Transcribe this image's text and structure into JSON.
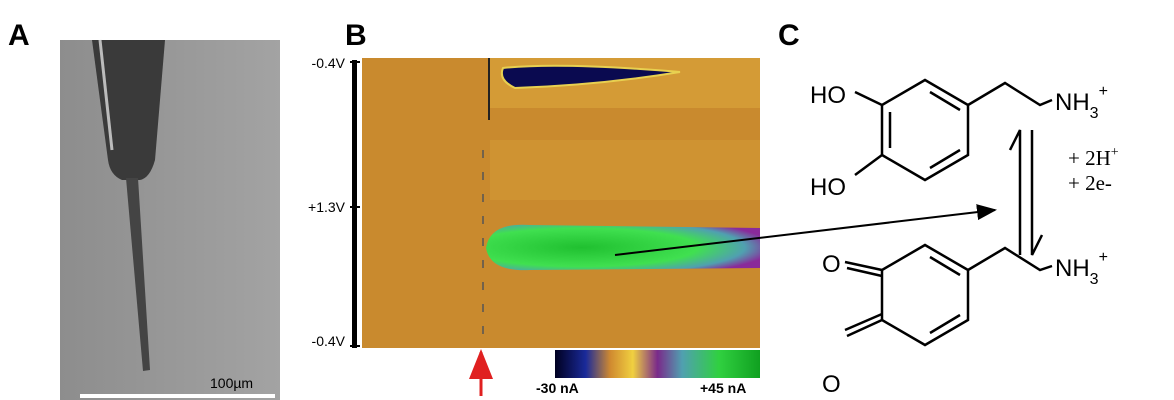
{
  "panels": {
    "a": {
      "label": "A",
      "scale_bar": "100µm"
    },
    "b": {
      "label": "B",
      "potentials": [
        "-0.4V",
        "+1.3V",
        "-0.4V"
      ],
      "colorbar": {
        "min_label": "-30 nA",
        "max_label": "+45 nA"
      }
    },
    "c": {
      "label": "C",
      "dopamine": {
        "hydroxyl_top": "HO",
        "hydroxyl_bottom": "HO",
        "amine": [
          "NH",
          "3",
          "+"
        ]
      },
      "reaction": {
        "protons": [
          "+ 2H",
          "+"
        ],
        "electrons": "+ 2e-"
      },
      "quinone": {
        "oxygen_top": "O",
        "oxygen_bottom": "O",
        "amine": [
          "NH",
          "3",
          "+"
        ]
      }
    }
  }
}
